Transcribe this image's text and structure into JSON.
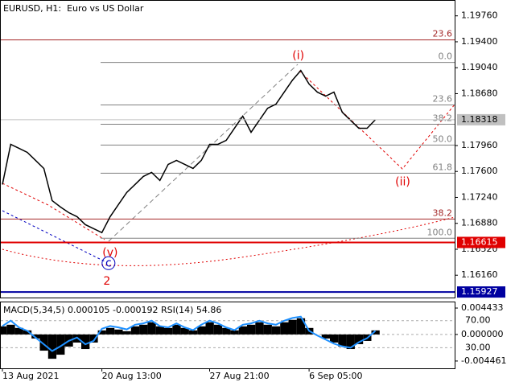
{
  "chart_data": [
    {
      "type": "line",
      "title": "EURUSD, H1:  Euro vs US Dollar",
      "categories": [
        "13 Aug 2021",
        null,
        null,
        null,
        null,
        null,
        null,
        null,
        null,
        null,
        null,
        null,
        "20 Aug 13:00",
        null,
        null,
        null,
        null,
        null,
        null,
        null,
        null,
        null,
        null,
        null,
        null,
        "27 Aug 21:00",
        null,
        null,
        null,
        null,
        null,
        null,
        null,
        null,
        null,
        null,
        null,
        "6 Sep 05:00",
        null,
        null,
        null,
        null,
        null,
        null,
        null,
        null
      ],
      "series": [
        {
          "color": "#000000",
          "values": [
            1.17419,
            1.17977,
            1.17921,
            1.17865,
            1.17754,
            1.17642,
            1.17196,
            1.17107,
            1.17029,
            1.16973,
            1.16862,
            1.16806,
            1.16751,
            1.16973,
            1.17141,
            1.17308,
            1.17419,
            1.17531,
            1.17587,
            1.17475,
            1.17698,
            1.17754,
            1.17698,
            1.17642,
            1.17754,
            1.17977,
            1.17977,
            1.18032,
            1.182,
            1.18367,
            1.18144,
            1.18311,
            1.18478,
            1.18534,
            1.18701,
            1.18868,
            1.19002,
            1.18813,
            1.18701,
            1.18645,
            1.18701,
            1.18422,
            1.18311,
            1.182,
            1.182,
            1.18318
          ]
        }
      ],
      "ylim": [
        1.1585,
        1.1998
      ],
      "yticks": [
        {
          "value": 1.1976,
          "label": "1.19760"
        },
        {
          "value": 1.194,
          "label": "1.19400"
        },
        {
          "value": 1.1904,
          "label": "1.19040"
        },
        {
          "value": 1.1868,
          "label": "1.18680"
        },
        {
          "value": 1.1796,
          "label": "1.17960"
        },
        {
          "value": 1.176,
          "label": "1.17600"
        },
        {
          "value": 1.1724,
          "label": "1.17240"
        },
        {
          "value": 1.1688,
          "label": "1.16880"
        },
        {
          "value": 1.1652,
          "label": "1.16520"
        },
        {
          "value": 1.1616,
          "label": "1.16160"
        }
      ],
      "hlines": [
        {
          "value": 1.18318,
          "color": "#c0c0c0",
          "text_color": "#000000"
        },
        {
          "value": 1.16615,
          "color": "#e00000",
          "text_color": "#ffffff"
        },
        {
          "value": 1.15927,
          "color": "#0000a0",
          "text_color": "#ffffff"
        }
      ],
      "fib_levels": [
        {
          "value": 1.19426,
          "label": "23.6",
          "color": "#a52a2a"
        },
        {
          "value": 1.19114,
          "label": "0.0",
          "color": "#808080"
        },
        {
          "value": 1.18523,
          "label": "23.6",
          "color": "#808080"
        },
        {
          "value": 1.18255,
          "label": "38.2",
          "color": "#808080"
        },
        {
          "value": 1.17966,
          "label": "50.0",
          "color": "#808080"
        },
        {
          "value": 1.17576,
          "label": "61.8",
          "color": "#808080"
        },
        {
          "value": 1.1694,
          "label": "38.2",
          "color": "#a52a2a"
        },
        {
          "value": 1.16673,
          "label": "100.0",
          "color": "#808080"
        }
      ],
      "annotations": [
        {
          "text": "(i)",
          "x": 35.7,
          "y": 1.19203,
          "color": "#e00000"
        },
        {
          "text": "(ii)",
          "x": 48.3,
          "y": 1.17453,
          "color": "#e00000"
        },
        {
          "text": "(v)",
          "x": 13,
          "y": 1.16472,
          "color": "#e00000"
        },
        {
          "text": "c",
          "x": 12.8,
          "y": 1.16327,
          "color": "#0000c0",
          "circled": true
        },
        {
          "text": "2",
          "x": 12.6,
          "y": 1.16071,
          "color": "#e00000"
        }
      ]
    },
    {
      "type": "bar",
      "title": "MACD(5,34,5) 0.000105 -0.000192 RSI(14) 54.86",
      "values": [
        0.00136,
        0.00163,
        0.00109,
        0.00068,
        -0.00068,
        -0.00272,
        -0.00408,
        -0.0034,
        -0.00204,
        -0.00136,
        -0.00245,
        -0.00136,
        0.00068,
        0.00109,
        0.00082,
        0.00054,
        0.00136,
        0.00163,
        0.00204,
        0.00136,
        0.00109,
        0.00163,
        0.00109,
        0.00068,
        0.00136,
        0.00204,
        0.00163,
        0.00109,
        0.00068,
        0.00136,
        0.00163,
        0.00204,
        0.00163,
        0.00136,
        0.00204,
        0.00245,
        0.00272,
        0.00109,
        0,
        -0.00068,
        -0.00136,
        -0.00204,
        -0.00245,
        -0.00163,
        -0.00109,
        0.00068
      ],
      "color": "#000000",
      "ylim": [
        -0.005685,
        0.005385
      ],
      "yticks": [
        0.004433,
        {
          "value": 0,
          "label": "0.000000"
        },
        -0.004461
      ],
      "y2lim": [
        -0.6,
        97.1
      ],
      "y2ticks": [
        {
          "value": 70,
          "label": "70.00"
        },
        {
          "value": 30,
          "label": "30.00"
        }
      ],
      "series": [
        {
          "axis": "y2",
          "color": "#1e90ff",
          "values": [
            62,
            70,
            60,
            55,
            45,
            35,
            25,
            32,
            40,
            45,
            35,
            40,
            58,
            62,
            60,
            57,
            64,
            66,
            70,
            62,
            60,
            66,
            60,
            56,
            64,
            70,
            66,
            60,
            56,
            64,
            66,
            70,
            66,
            64,
            70,
            74,
            76,
            55,
            48,
            42,
            36,
            32,
            30,
            38,
            44,
            55
          ]
        }
      ]
    }
  ]
}
